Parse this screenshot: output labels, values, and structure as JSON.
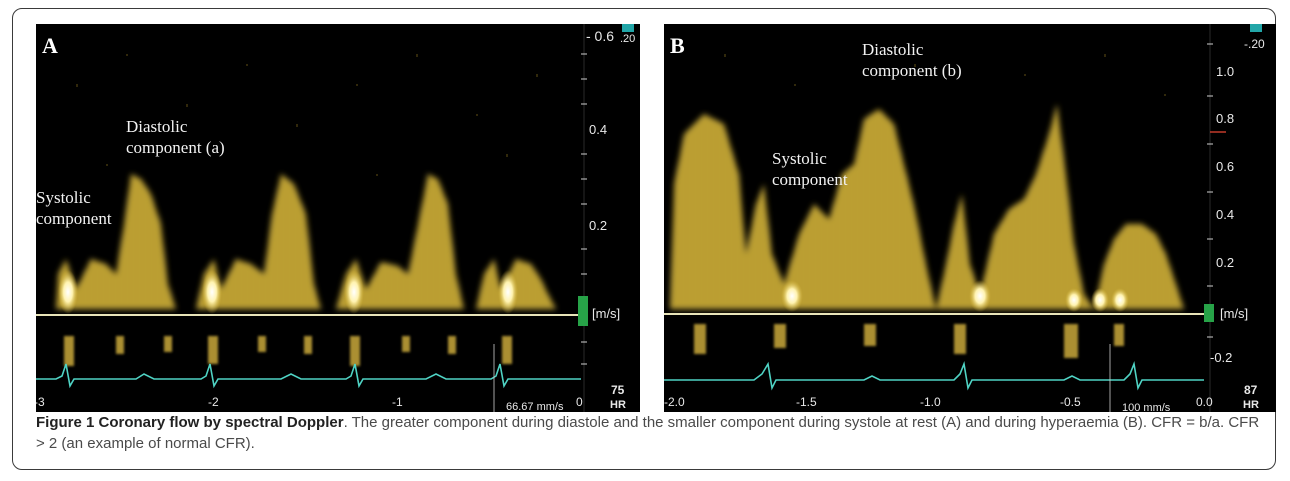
{
  "figure": {
    "caption_title": "Figure 1 Coronary flow by spectral Doppler",
    "caption_text": ". The greater component during diastole and the smaller component during systole at rest (A) and during hyperaemia (B). CFR = b/a. CFR > 2 (an example of normal CFR)."
  },
  "panel_a": {
    "label": "A",
    "annotation_diastolic_line1": "Diastolic",
    "annotation_diastolic_line2": "component (a)",
    "annotation_systolic_line1": "Systolic",
    "annotation_systolic_line2": "component",
    "scale_top": "- 0.6",
    "scale_top_small": ".20",
    "scale_ticks": [
      "0.4",
      "0.2"
    ],
    "unit": "[m/s]",
    "time_ticks": [
      "-3",
      "-2",
      "-1",
      "0"
    ],
    "sweep_speed": "66.67 mm/s",
    "hr_value": "75",
    "hr_label": "HR"
  },
  "panel_b": {
    "label": "B",
    "annotation_diastolic_line1": "Diastolic",
    "annotation_diastolic_line2": "component (b)",
    "annotation_systolic_line1": "Systolic",
    "annotation_systolic_line2": "component",
    "scale_top_small": "-.20",
    "scale_ticks": [
      "1.0",
      "0.8",
      "0.6",
      "0.4",
      "0.2",
      "-0.2"
    ],
    "unit": "[m/s]",
    "time_ticks": [
      "-2.0",
      "-1.5",
      "-1.0",
      "-0.5",
      "0.0"
    ],
    "sweep_speed": "100 mm/s",
    "hr_value": "87",
    "hr_label": "HR"
  },
  "colors": {
    "doppler": "#d9c04a",
    "doppler_bright": "#fff4c0",
    "baseline": "#e8e4b8",
    "ecg": "#4fd3c4",
    "scale_marker": "#27a348",
    "panel_bg": "#000000"
  }
}
